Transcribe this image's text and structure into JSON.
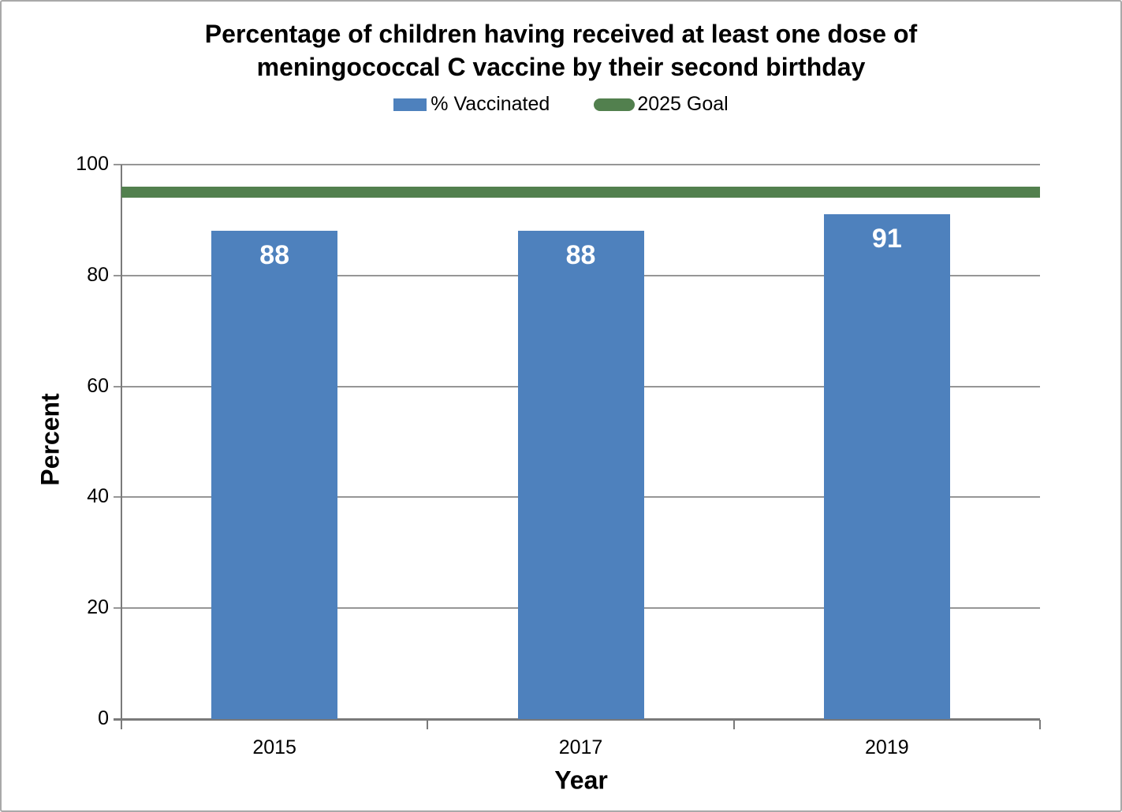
{
  "chart_data": {
    "type": "bar",
    "title": "Percentage of children having received at least one dose of meningococcal C vaccine by their second birthday",
    "xlabel": "Year",
    "ylabel": "Percent",
    "categories": [
      "2015",
      "2017",
      "2019"
    ],
    "series": [
      {
        "name": "% Vaccinated",
        "type": "bar",
        "values": [
          88,
          88,
          91
        ],
        "color": "#4e81bd"
      },
      {
        "name": "2025 Goal",
        "type": "reference-line",
        "value": 95,
        "color": "#52804e"
      }
    ],
    "bar_value_labels": [
      "88",
      "88",
      "91"
    ],
    "ylim": [
      0,
      100
    ],
    "yticks": [
      0,
      20,
      40,
      60,
      80,
      100
    ],
    "grid": true,
    "legend_position": "top"
  },
  "legend": {
    "items": [
      {
        "label": "% Vaccinated",
        "color": "#4e81bd",
        "shape": "rect"
      },
      {
        "label": "2025 Goal",
        "color": "#52804e",
        "shape": "capsule"
      }
    ]
  },
  "colors": {
    "axis": "#7a7a7a",
    "gridline": "#969696",
    "frame_border": "#a9a9a9",
    "text": "#000000",
    "bar_label_text": "#ffffff"
  }
}
